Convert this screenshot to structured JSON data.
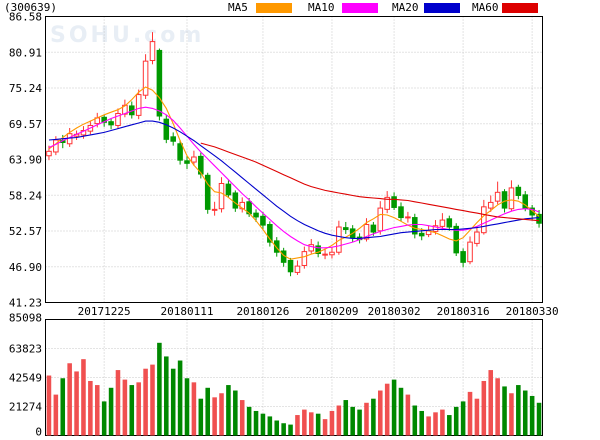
{
  "chart_data": {
    "type": "candlestick",
    "stock_code": "(300639)",
    "watermark": "SOHU.com",
    "price_ticks": [
      "86.58",
      "80.91",
      "75.24",
      "69.57",
      "63.90",
      "58.24",
      "52.57",
      "46.90",
      "41.23"
    ],
    "price_range": [
      41.23,
      86.58
    ],
    "volume_ticks": [
      "85098",
      "63823",
      "42549",
      "21274",
      "0"
    ],
    "volume_range": [
      0,
      85098
    ],
    "date_labels": [
      {
        "label": "20171225",
        "index": 8
      },
      {
        "label": "20180111",
        "index": 20
      },
      {
        "label": "20180126",
        "index": 31
      },
      {
        "label": "20180209",
        "index": 41
      },
      {
        "label": "20180302",
        "index": 50
      },
      {
        "label": "20180316",
        "index": 60
      },
      {
        "label": "20180330",
        "index": 70
      }
    ],
    "legend": [
      {
        "name": "MA5",
        "color": "#ff9900"
      },
      {
        "name": "MA10",
        "color": "#ff00ff"
      },
      {
        "name": "MA20",
        "color": "#0000cc"
      },
      {
        "name": "MA60",
        "color": "#dd0000"
      }
    ],
    "colors": {
      "up": "#ff3333",
      "down": "#009900",
      "up_volume": "#f05050",
      "down_volume": "#008800"
    },
    "closes": [
      65.2,
      67.0,
      66.6,
      68.0,
      67.9,
      68.5,
      69.3,
      70.5,
      69.8,
      69.4,
      71.2,
      72.5,
      71.0,
      74.2,
      79.5,
      82.6,
      70.8,
      67.1,
      66.8,
      63.8,
      63.3,
      64.3,
      61.6,
      56.0,
      56.0,
      60.1,
      58.3,
      56.2,
      57.1,
      55.3,
      54.8,
      53.5,
      50.8,
      49.2,
      47.6,
      46.1,
      47.0,
      49.3,
      50.4,
      49.0,
      48.9,
      49.2,
      53.2,
      52.8,
      51.5,
      51.2,
      53.6,
      52.4,
      56.2,
      57.9,
      56.3,
      54.7,
      54.8,
      52.1,
      51.8,
      52.6,
      53.4,
      54.3,
      53.2,
      49.1,
      47.6,
      50.8,
      52.4,
      56.4,
      57.1,
      58.7,
      56.2,
      59.4,
      58.2,
      56.2,
      55.1,
      53.8
    ],
    "opens": [
      64.5,
      65.1,
      66.9,
      66.4,
      67.6,
      67.8,
      68.4,
      69.6,
      70.6,
      69.9,
      69.3,
      71.1,
      72.4,
      70.9,
      74.1,
      79.6,
      81.2,
      70.3,
      67.5,
      66.4,
      63.7,
      63.5,
      64.4,
      61.4,
      56.0,
      56.1,
      60.0,
      58.6,
      56.1,
      57.2,
      55.4,
      54.9,
      53.6,
      51.0,
      49.4,
      47.9,
      46.0,
      47.1,
      49.4,
      50.2,
      48.8,
      48.8,
      49.2,
      53.1,
      52.9,
      51.6,
      51.3,
      53.5,
      52.6,
      56.0,
      58.0,
      56.4,
      54.8,
      54.7,
      52.2,
      52.0,
      52.5,
      53.3,
      54.5,
      53.3,
      49.3,
      47.7,
      50.6,
      52.3,
      56.2,
      57.3,
      58.8,
      56.1,
      59.5,
      58.3,
      56.2,
      55.2
    ],
    "highs": [
      66.1,
      67.6,
      67.8,
      68.9,
      68.5,
      69.2,
      70.1,
      71.3,
      71.0,
      70.4,
      72.0,
      73.4,
      73.1,
      75.0,
      80.6,
      84.1,
      81.5,
      71.0,
      68.2,
      67.0,
      64.5,
      65.3,
      65.0,
      61.8,
      57.2,
      61.1,
      60.6,
      59.0,
      57.9,
      57.8,
      56.0,
      55.6,
      54.1,
      51.6,
      49.9,
      48.3,
      47.9,
      50.1,
      51.3,
      50.9,
      49.8,
      50.0,
      54.2,
      54.0,
      53.5,
      52.2,
      54.6,
      54.0,
      57.3,
      58.9,
      58.7,
      57.1,
      55.6,
      55.3,
      53.0,
      53.4,
      54.3,
      55.4,
      55.0,
      53.8,
      49.8,
      51.7,
      53.3,
      57.5,
      58.2,
      60.4,
      59.2,
      60.6,
      59.9,
      58.9,
      56.7,
      55.9
    ],
    "lows": [
      63.8,
      64.6,
      65.7,
      65.9,
      67.0,
      67.2,
      67.9,
      69.0,
      69.1,
      68.7,
      68.8,
      70.6,
      70.4,
      70.3,
      73.5,
      79.0,
      70.1,
      66.5,
      66.1,
      63.1,
      62.4,
      62.9,
      60.9,
      55.3,
      55.0,
      55.5,
      57.8,
      55.6,
      55.5,
      54.8,
      54.0,
      52.8,
      50.1,
      48.5,
      46.9,
      45.4,
      45.6,
      46.6,
      49.0,
      48.4,
      48.1,
      48.2,
      48.8,
      52.1,
      50.8,
      50.6,
      50.9,
      51.8,
      52.0,
      55.4,
      55.9,
      54.1,
      53.9,
      51.4,
      51.1,
      51.6,
      52.0,
      52.7,
      52.6,
      48.6,
      46.8,
      47.3,
      50.1,
      52.0,
      55.6,
      56.8,
      55.5,
      55.7,
      57.6,
      55.7,
      54.4,
      53.1
    ],
    "volumes": [
      44000,
      30000,
      42000,
      53000,
      47000,
      56000,
      40000,
      37000,
      25000,
      35000,
      48000,
      41000,
      37000,
      39000,
      49000,
      52000,
      68000,
      58000,
      49000,
      55000,
      42000,
      39000,
      27000,
      35000,
      28000,
      31000,
      37000,
      33000,
      26000,
      21000,
      18000,
      16000,
      14000,
      11000,
      9000,
      8000,
      15000,
      19000,
      17000,
      16000,
      12000,
      18000,
      22000,
      26000,
      21000,
      19000,
      24000,
      27000,
      33000,
      38000,
      41000,
      35000,
      30000,
      22000,
      18000,
      14000,
      17000,
      19000,
      15000,
      21000,
      25000,
      32000,
      27000,
      40000,
      48000,
      42000,
      36000,
      31000,
      37000,
      33000,
      29000,
      24000
    ],
    "ma5": [
      65.6,
      66.4,
      67.4,
      68.2,
      68.9,
      69.5,
      70.0,
      70.5,
      71.0,
      71.4,
      71.8,
      72.4,
      73.4,
      74.6,
      75.4,
      74.9,
      73.7,
      72.0,
      69.6,
      66.9,
      64.5,
      63.0,
      61.8,
      60.0,
      58.8,
      58.6,
      57.9,
      57.0,
      56.2,
      55.4,
      54.2,
      52.8,
      51.3,
      49.9,
      48.7,
      48.1,
      48.3,
      48.5,
      48.9,
      49.2,
      49.7,
      50.3,
      51.1,
      51.6,
      52.2,
      53.0,
      53.9,
      54.5,
      55.2,
      55.1,
      54.7,
      54.1,
      53.5,
      53.0,
      52.8,
      52.6,
      52.3,
      51.8,
      51.3,
      51.0,
      51.5,
      52.7,
      53.9,
      55.0,
      55.8,
      56.7,
      57.3,
      57.5,
      57.3,
      56.7,
      55.8,
      54.9
    ],
    "ma10": [
      65.8,
      66.3,
      66.9,
      67.4,
      67.9,
      68.4,
      68.9,
      69.4,
      69.9,
      70.4,
      70.8,
      71.2,
      71.6,
      72.0,
      72.2,
      72.0,
      71.6,
      71.0,
      70.1,
      68.9,
      67.6,
      66.3,
      65.1,
      64.0,
      62.9,
      61.8,
      60.7,
      59.6,
      58.5,
      57.5,
      56.4,
      55.4,
      54.4,
      53.4,
      52.5,
      51.7,
      51.0,
      50.4,
      50.1,
      49.9,
      49.9,
      50.0,
      50.2,
      50.5,
      50.8,
      51.2,
      51.7,
      52.1,
      52.5,
      52.8,
      53.1,
      53.3,
      53.5,
      53.6,
      53.6,
      53.4,
      53.2,
      53.0,
      52.8,
      52.7,
      52.7,
      52.9,
      53.3,
      53.8,
      54.3,
      54.8,
      55.3,
      55.7,
      56.0,
      56.1,
      56.0,
      55.6
    ],
    "ma20": [
      67.0,
      67.1,
      67.2,
      67.3,
      67.4,
      67.6,
      67.8,
      68.0,
      68.2,
      68.5,
      68.8,
      69.1,
      69.4,
      69.7,
      70.0,
      70.0,
      69.8,
      69.4,
      68.9,
      68.3,
      67.6,
      66.9,
      66.1,
      65.3,
      64.5,
      63.7,
      62.8,
      61.9,
      61.0,
      60.1,
      59.2,
      58.3,
      57.4,
      56.5,
      55.7,
      54.9,
      54.2,
      53.6,
      53.1,
      52.6,
      52.2,
      51.9,
      51.7,
      51.5,
      51.4,
      51.4,
      51.5,
      51.6,
      51.7,
      51.9,
      52.1,
      52.3,
      52.4,
      52.5,
      52.6,
      52.7,
      52.8,
      52.8,
      52.8,
      52.8,
      52.9,
      53.0,
      53.1,
      53.3,
      53.5,
      53.7,
      53.9,
      54.1,
      54.3,
      54.5,
      54.6,
      54.7
    ],
    "ma60": [
      null,
      null,
      null,
      null,
      null,
      null,
      null,
      null,
      null,
      null,
      null,
      null,
      null,
      null,
      null,
      null,
      null,
      null,
      null,
      null,
      null,
      null,
      66.5,
      66.2,
      65.9,
      65.5,
      65.1,
      64.7,
      64.3,
      63.9,
      63.5,
      63.0,
      62.5,
      62.0,
      61.5,
      61.0,
      60.5,
      60.0,
      59.6,
      59.3,
      59.0,
      58.8,
      58.6,
      58.4,
      58.2,
      58.0,
      57.9,
      57.8,
      57.7,
      57.6,
      57.6,
      57.5,
      57.4,
      57.2,
      57.0,
      56.8,
      56.6,
      56.4,
      56.2,
      56.0,
      55.8,
      55.6,
      55.4,
      55.2,
      55.0,
      54.8,
      54.7,
      54.6,
      54.5,
      54.4,
      54.3,
      54.2
    ]
  }
}
